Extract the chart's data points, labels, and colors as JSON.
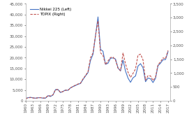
{
  "title": "",
  "nikkei_label": "Nikkei 225 (Left)",
  "topix_label": "TOPIX (Right)",
  "years": [
    1960,
    1961,
    1962,
    1963,
    1964,
    1965,
    1966,
    1967,
    1968,
    1969,
    1970,
    1971,
    1972,
    1973,
    1974,
    1975,
    1976,
    1977,
    1978,
    1979,
    1980,
    1981,
    1982,
    1983,
    1984,
    1985,
    1986,
    1987,
    1988,
    1989,
    1990,
    1991,
    1992,
    1993,
    1994,
    1995,
    1996,
    1997,
    1998,
    1999,
    2000,
    2001,
    2002,
    2003,
    2004,
    2005,
    2006,
    2007,
    2008,
    2009,
    2010,
    2011,
    2012,
    2013,
    2014,
    2015,
    2016,
    2017
  ],
  "nikkei": [
    1000,
    1432,
    1589,
    1370,
    1216,
    1418,
    1453,
    1241,
    1215,
    2359,
    1987,
    2714,
    5207,
    5207,
    3817,
    4358,
    4990,
    4866,
    6001,
    6569,
    7116,
    7681,
    8017,
    9893,
    11543,
    13083,
    18701,
    21564,
    30159,
    38916,
    23849,
    22984,
    16925,
    17417,
    19723,
    19868,
    19361,
    15259,
    13842,
    18934,
    13785,
    10543,
    8579,
    10677,
    11488,
    16111,
    17225,
    15308,
    8860,
    10546,
    10229,
    8455,
    10395,
    16291,
    17451,
    19034,
    19114,
    22765
  ],
  "topix": [
    80,
    105,
    116,
    103,
    92,
    107,
    113,
    100,
    103,
    188,
    174,
    218,
    401,
    407,
    308,
    333,
    381,
    378,
    465,
    519,
    567,
    605,
    636,
    790,
    913,
    1049,
    1556,
    1725,
    2357,
    2881,
    1733,
    1638,
    1307,
    1440,
    1560,
    1577,
    1470,
    1175,
    1086,
    1722,
    1333,
    1032,
    844,
    987,
    1150,
    1649,
    1682,
    1476,
    747,
    907,
    899,
    729,
    859,
    1302,
    1407,
    1547,
    1519,
    1817
  ],
  "nikkei_color": "#4472C4",
  "topix_color": "#C0504D",
  "ylim_left": [
    0,
    45000
  ],
  "ylim_right": [
    0,
    3500
  ],
  "yticks_left": [
    0,
    5000,
    10000,
    15000,
    20000,
    25000,
    30000,
    35000,
    40000,
    45000
  ],
  "yticks_right": [
    0,
    500,
    1000,
    1500,
    2000,
    2500,
    3000,
    3500
  ],
  "xtick_years": [
    1960,
    1963,
    1966,
    1969,
    1972,
    1975,
    1978,
    1981,
    1984,
    1987,
    1990,
    1993,
    1996,
    1999,
    2002,
    2005,
    2008,
    2011,
    2014,
    2017
  ],
  "xtick_labels": [
    "1960",
    "1963",
    "1966",
    "1969",
    "1972",
    "1975",
    "1978",
    "1981",
    "1984",
    "1987",
    "1990",
    "1993",
    "1996",
    "1999",
    "2002",
    "2005",
    "2008",
    "2011",
    "2014",
    "2017"
  ],
  "background_color": "#ffffff",
  "spine_color": "#bbbbbb",
  "tick_color": "#555555",
  "font_size": 4.0,
  "line_width": 0.8
}
